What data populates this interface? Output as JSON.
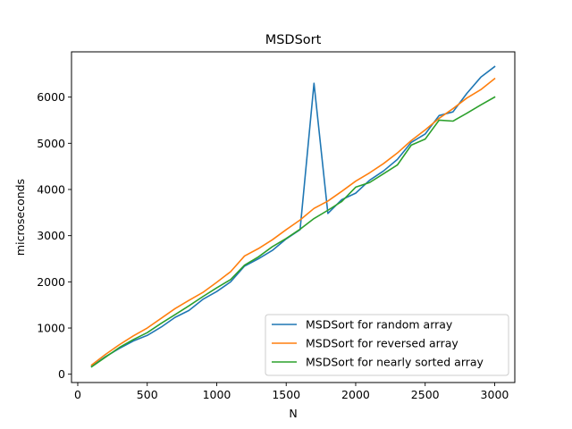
{
  "chart_data": {
    "type": "line",
    "title": "MSDSort",
    "xlabel": "N",
    "ylabel": "microseconds",
    "xlim": [
      -45,
      3145
    ],
    "ylim": [
      -180,
      6980
    ],
    "x_ticks": [
      0,
      500,
      1000,
      1500,
      2000,
      2500,
      3000
    ],
    "y_ticks": [
      0,
      1000,
      2000,
      3000,
      4000,
      5000,
      6000
    ],
    "legend_location": "lower-right",
    "x": [
      100,
      200,
      300,
      400,
      500,
      600,
      700,
      800,
      900,
      1000,
      1100,
      1200,
      1300,
      1400,
      1500,
      1600,
      1700,
      1800,
      1900,
      2000,
      2100,
      2200,
      2300,
      2400,
      2500,
      2600,
      2700,
      2800,
      2900,
      3000
    ],
    "series": [
      {
        "name": "MSDSort for random array",
        "color": "#1f77b4",
        "values": [
          170,
          380,
          560,
          720,
          840,
          1020,
          1230,
          1380,
          1620,
          1790,
          2000,
          2340,
          2500,
          2680,
          2930,
          3130,
          6300,
          3480,
          3780,
          3920,
          4200,
          4400,
          4650,
          5020,
          5200,
          5600,
          5680,
          6080,
          6430,
          6660
        ]
      },
      {
        "name": "MSDSort for reversed array",
        "color": "#ff7f0e",
        "values": [
          200,
          430,
          640,
          830,
          1000,
          1210,
          1420,
          1600,
          1770,
          1990,
          2220,
          2560,
          2720,
          2910,
          3130,
          3340,
          3590,
          3750,
          3960,
          4180,
          4360,
          4560,
          4790,
          5060,
          5290,
          5540,
          5750,
          5980,
          6160,
          6400
        ]
      },
      {
        "name": "MSDSort for nearly sorted array",
        "color": "#2ca02c",
        "values": [
          160,
          370,
          580,
          750,
          900,
          1100,
          1290,
          1480,
          1680,
          1870,
          2050,
          2360,
          2540,
          2760,
          2940,
          3140,
          3370,
          3550,
          3740,
          4050,
          4150,
          4340,
          4530,
          4960,
          5090,
          5500,
          5480,
          5650,
          5830,
          6000
        ]
      }
    ]
  }
}
